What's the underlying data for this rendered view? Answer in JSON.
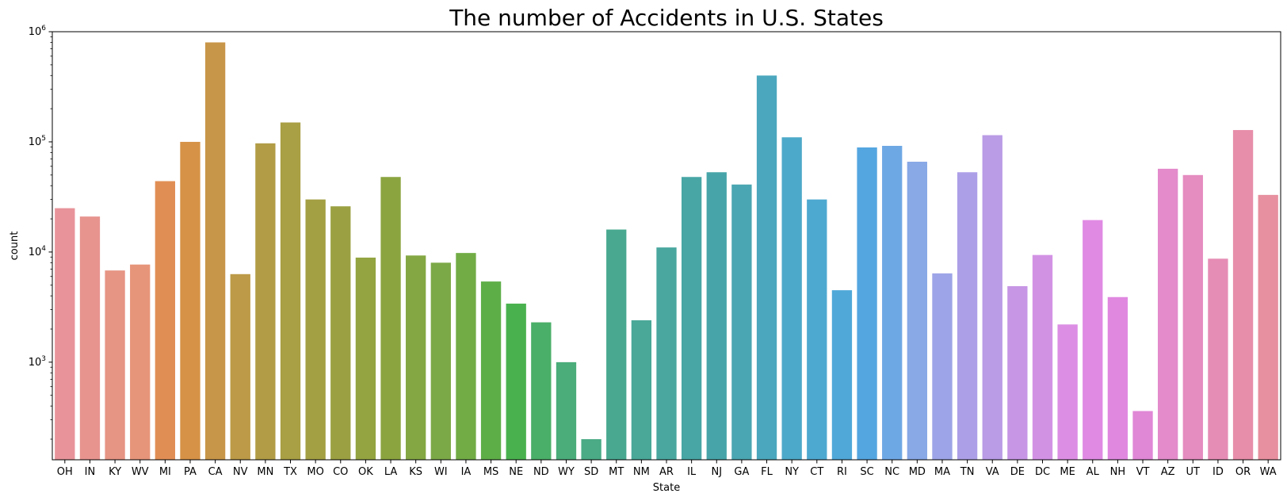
{
  "chart_data": {
    "type": "bar",
    "title": "The number of Accidents in U.S. States",
    "xlabel": "State",
    "ylabel": "count",
    "yscale": "log",
    "ylim": [
      130,
      1000000
    ],
    "yticks": [
      {
        "value": 1000,
        "base": "10",
        "exp": "3"
      },
      {
        "value": 10000,
        "base": "10",
        "exp": "4"
      },
      {
        "value": 100000,
        "base": "10",
        "exp": "5"
      },
      {
        "value": 1000000,
        "base": "10",
        "exp": "6"
      }
    ],
    "grid": false,
    "legend": "none",
    "categories": [
      "OH",
      "IN",
      "KY",
      "WV",
      "MI",
      "PA",
      "CA",
      "NV",
      "MN",
      "TX",
      "MO",
      "CO",
      "OK",
      "LA",
      "KS",
      "WI",
      "IA",
      "MS",
      "NE",
      "ND",
      "WY",
      "SD",
      "MT",
      "NM",
      "AR",
      "IL",
      "NJ",
      "GA",
      "FL",
      "NY",
      "CT",
      "RI",
      "SC",
      "NC",
      "MD",
      "MA",
      "TN",
      "VA",
      "DE",
      "DC",
      "ME",
      "AL",
      "NH",
      "VT",
      "AZ",
      "UT",
      "ID",
      "OR",
      "WA"
    ],
    "values": [
      25000,
      21000,
      6800,
      7700,
      44000,
      100000,
      800000,
      6300,
      97000,
      150000,
      30000,
      26000,
      8900,
      48000,
      9300,
      8000,
      9800,
      5400,
      3400,
      2300,
      1000,
      200,
      16000,
      2400,
      11000,
      48000,
      53000,
      41000,
      400000,
      110000,
      30000,
      4500,
      89000,
      92000,
      66000,
      6400,
      53000,
      115000,
      4900,
      9400,
      2200,
      19500,
      3900,
      360,
      57000,
      50000,
      8700,
      128000,
      33000
    ],
    "colors": [
      "#e8939a",
      "#e7948f",
      "#e69484",
      "#e6957a",
      "#e18e55",
      "#d69247",
      "#c89649",
      "#bc9a47",
      "#b29c46",
      "#a99f44",
      "#a39f43",
      "#9ba142",
      "#93a441",
      "#8ba440",
      "#84a743",
      "#7ca947",
      "#71ac45",
      "#5eae48",
      "#49b24e",
      "#4aaf68",
      "#4aad7a",
      "#4aab86",
      "#49a990",
      "#49a898",
      "#49a79f",
      "#48a6a5",
      "#47a5a9",
      "#4aa6b2",
      "#4ba7bd",
      "#4da9c9",
      "#4ea9d0",
      "#50a8d8",
      "#54a6e0",
      "#6ea8e4",
      "#88a8e6",
      "#9da4e7",
      "#ad9fe7",
      "#b99be6",
      "#c796e5",
      "#d292e4",
      "#dc8ee4",
      "#e08ae4",
      "#e088e0",
      "#e087d6",
      "#e38bcb",
      "#e58cc0",
      "#e68db5",
      "#e78eaa",
      "#e7909f"
    ]
  }
}
